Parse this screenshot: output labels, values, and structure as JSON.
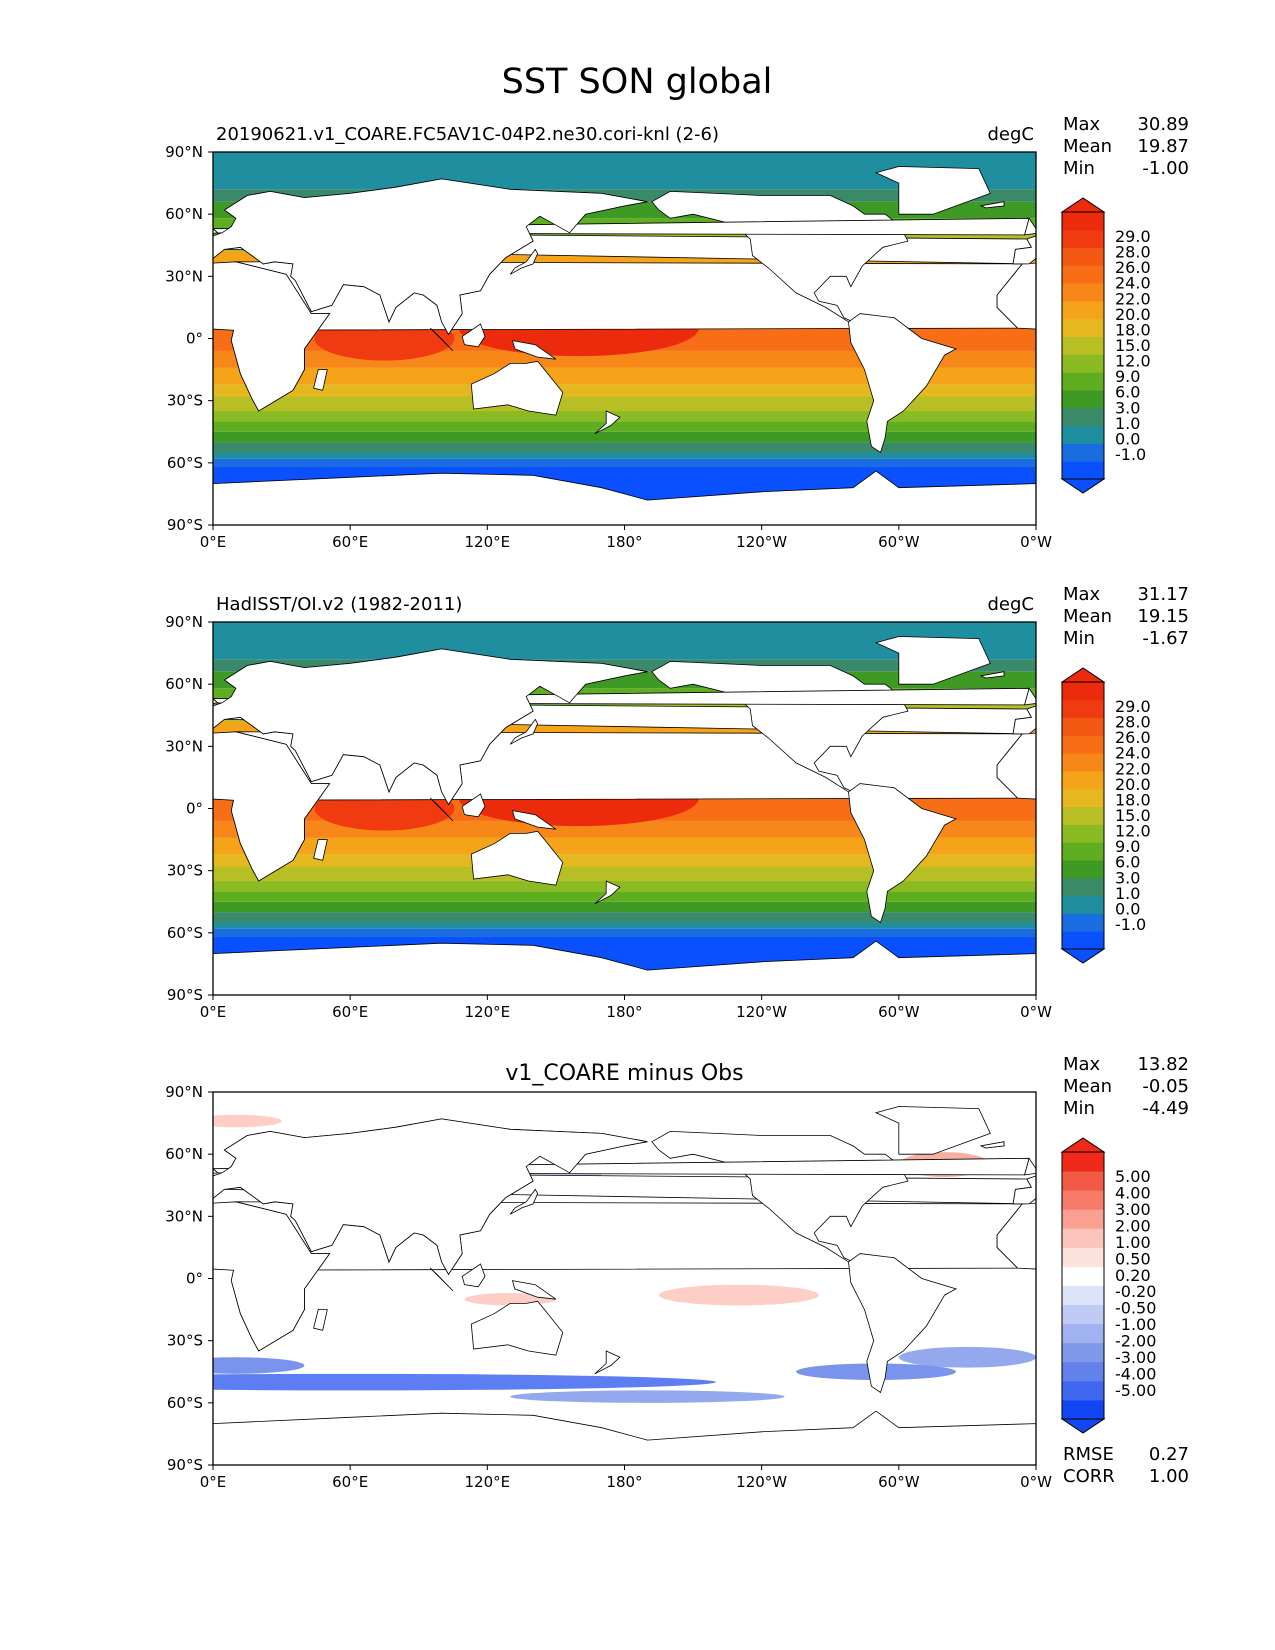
{
  "page_title": "SST SON global",
  "colors": {
    "sst_levels": [
      "#0a50ff",
      "#1a6de0",
      "#1f8fa0",
      "#3a8a6a",
      "#3f9a25",
      "#5fae1f",
      "#8cba22",
      "#b7bf25",
      "#e6b820",
      "#f5a319",
      "#f8871a",
      "#f76e16",
      "#f45914",
      "#f03b10",
      "#ec2a0c"
    ],
    "diff_levels": [
      "#1246f5",
      "#3f67f0",
      "#6381ea",
      "#8099ea",
      "#a0b2ef",
      "#bfcbf4",
      "#dde4fa",
      "#ffffff",
      "#fde2dc",
      "#fbc5bb",
      "#f9a092",
      "#f67c69",
      "#f35a45",
      "#ef2a1a"
    ],
    "land": "#ffffff",
    "coast": "#000000"
  },
  "chart_data": [
    {
      "type": "heatmap",
      "panel": "model",
      "title_left": "20190621.v1_COARE.FC5AV1C-04P2.ne30.cori-knl (2-6)",
      "title_right": "degC",
      "stats": [
        {
          "label": "Max",
          "value": "30.89"
        },
        {
          "label": "Mean",
          "value": "19.87"
        },
        {
          "label": "Min",
          "value": "-1.00"
        }
      ],
      "x_ticks": [
        "0°E",
        "60°E",
        "120°E",
        "180°",
        "120°W",
        "60°W",
        "0°W"
      ],
      "y_ticks": [
        "90°N",
        "60°N",
        "30°N",
        "0°",
        "30°S",
        "60°S",
        "90°S"
      ],
      "xlim": [
        0,
        360
      ],
      "ylim": [
        -90,
        90
      ],
      "colorbar_levels": [
        "29.0",
        "28.0",
        "26.0",
        "24.0",
        "22.0",
        "20.0",
        "18.0",
        "15.0",
        "12.0",
        "9.0",
        "6.0",
        "3.0",
        "1.0",
        "0.0",
        "-1.0"
      ],
      "colorbar_extend": "both"
    },
    {
      "type": "heatmap",
      "panel": "obs",
      "title_left": "HadISST/OI.v2 (1982-2011)",
      "title_right": "degC",
      "stats": [
        {
          "label": "Max",
          "value": "31.17"
        },
        {
          "label": "Mean",
          "value": "19.15"
        },
        {
          "label": "Min",
          "value": "-1.67"
        }
      ],
      "x_ticks": [
        "0°E",
        "60°E",
        "120°E",
        "180°",
        "120°W",
        "60°W",
        "0°W"
      ],
      "y_ticks": [
        "90°N",
        "60°N",
        "30°N",
        "0°",
        "30°S",
        "60°S",
        "90°S"
      ],
      "xlim": [
        0,
        360
      ],
      "ylim": [
        -90,
        90
      ],
      "colorbar_levels": [
        "29.0",
        "28.0",
        "26.0",
        "24.0",
        "22.0",
        "20.0",
        "18.0",
        "15.0",
        "12.0",
        "9.0",
        "6.0",
        "3.0",
        "1.0",
        "0.0",
        "-1.0"
      ],
      "colorbar_extend": "both"
    },
    {
      "type": "heatmap",
      "panel": "diff",
      "title_center": "v1_COARE minus Obs",
      "stats": [
        {
          "label": "Max",
          "value": "13.82"
        },
        {
          "label": "Mean",
          "value": "-0.05"
        },
        {
          "label": "Min",
          "value": "-4.49"
        }
      ],
      "bottom_stats": [
        {
          "label": "RMSE",
          "value": "0.27"
        },
        {
          "label": "CORR",
          "value": "1.00"
        }
      ],
      "x_ticks": [
        "0°E",
        "60°E",
        "120°E",
        "180°",
        "120°W",
        "60°W",
        "0°W"
      ],
      "y_ticks": [
        "90°N",
        "60°N",
        "30°N",
        "0°",
        "30°S",
        "60°S",
        "90°S"
      ],
      "xlim": [
        0,
        360
      ],
      "ylim": [
        -90,
        90
      ],
      "colorbar_levels": [
        "5.00",
        "4.00",
        "3.00",
        "2.00",
        "1.00",
        "0.50",
        "0.20",
        "-0.20",
        "-0.50",
        "-1.00",
        "-2.00",
        "-3.00",
        "-4.00",
        "-5.00"
      ],
      "colorbar_extend": "both"
    }
  ]
}
